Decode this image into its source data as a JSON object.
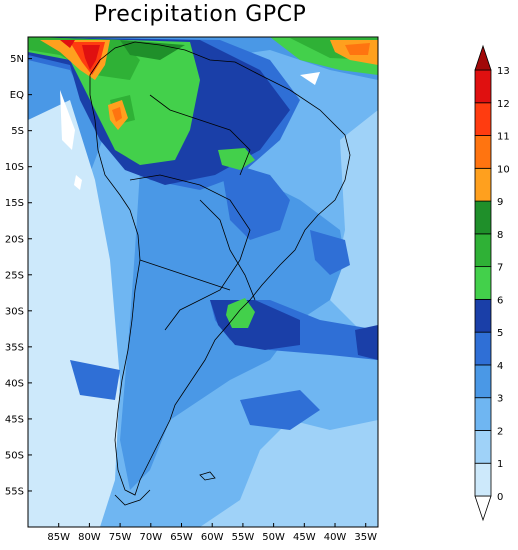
{
  "title": "Precipitation GPCP",
  "map": {
    "lat_labels": [
      "5N",
      "EQ",
      "5S",
      "10S",
      "15S",
      "20S",
      "25S",
      "30S",
      "35S",
      "40S",
      "45S",
      "50S",
      "55S"
    ],
    "lon_labels": [
      "85W",
      "80W",
      "75W",
      "70W",
      "65W",
      "60W",
      "55W",
      "50W",
      "45W",
      "40W",
      "35W"
    ],
    "lat_range": [
      8,
      -60
    ],
    "lon_range": [
      -90,
      -33
    ]
  },
  "colorbar": {
    "levels": [
      "0",
      "1",
      "2",
      "3",
      "4",
      "5",
      "6",
      "7",
      "8",
      "9",
      "10",
      "11",
      "12",
      "13"
    ],
    "colors": [
      "#ffffff",
      "#cde9fb",
      "#9fd2f8",
      "#6fb6f2",
      "#4a98e6",
      "#2f6fd6",
      "#1a3fa8",
      "#43d04b",
      "#2fb136",
      "#1f8f2a",
      "#ffa01e",
      "#ff7410",
      "#ff3c10",
      "#e01010",
      "#a10808"
    ]
  }
}
